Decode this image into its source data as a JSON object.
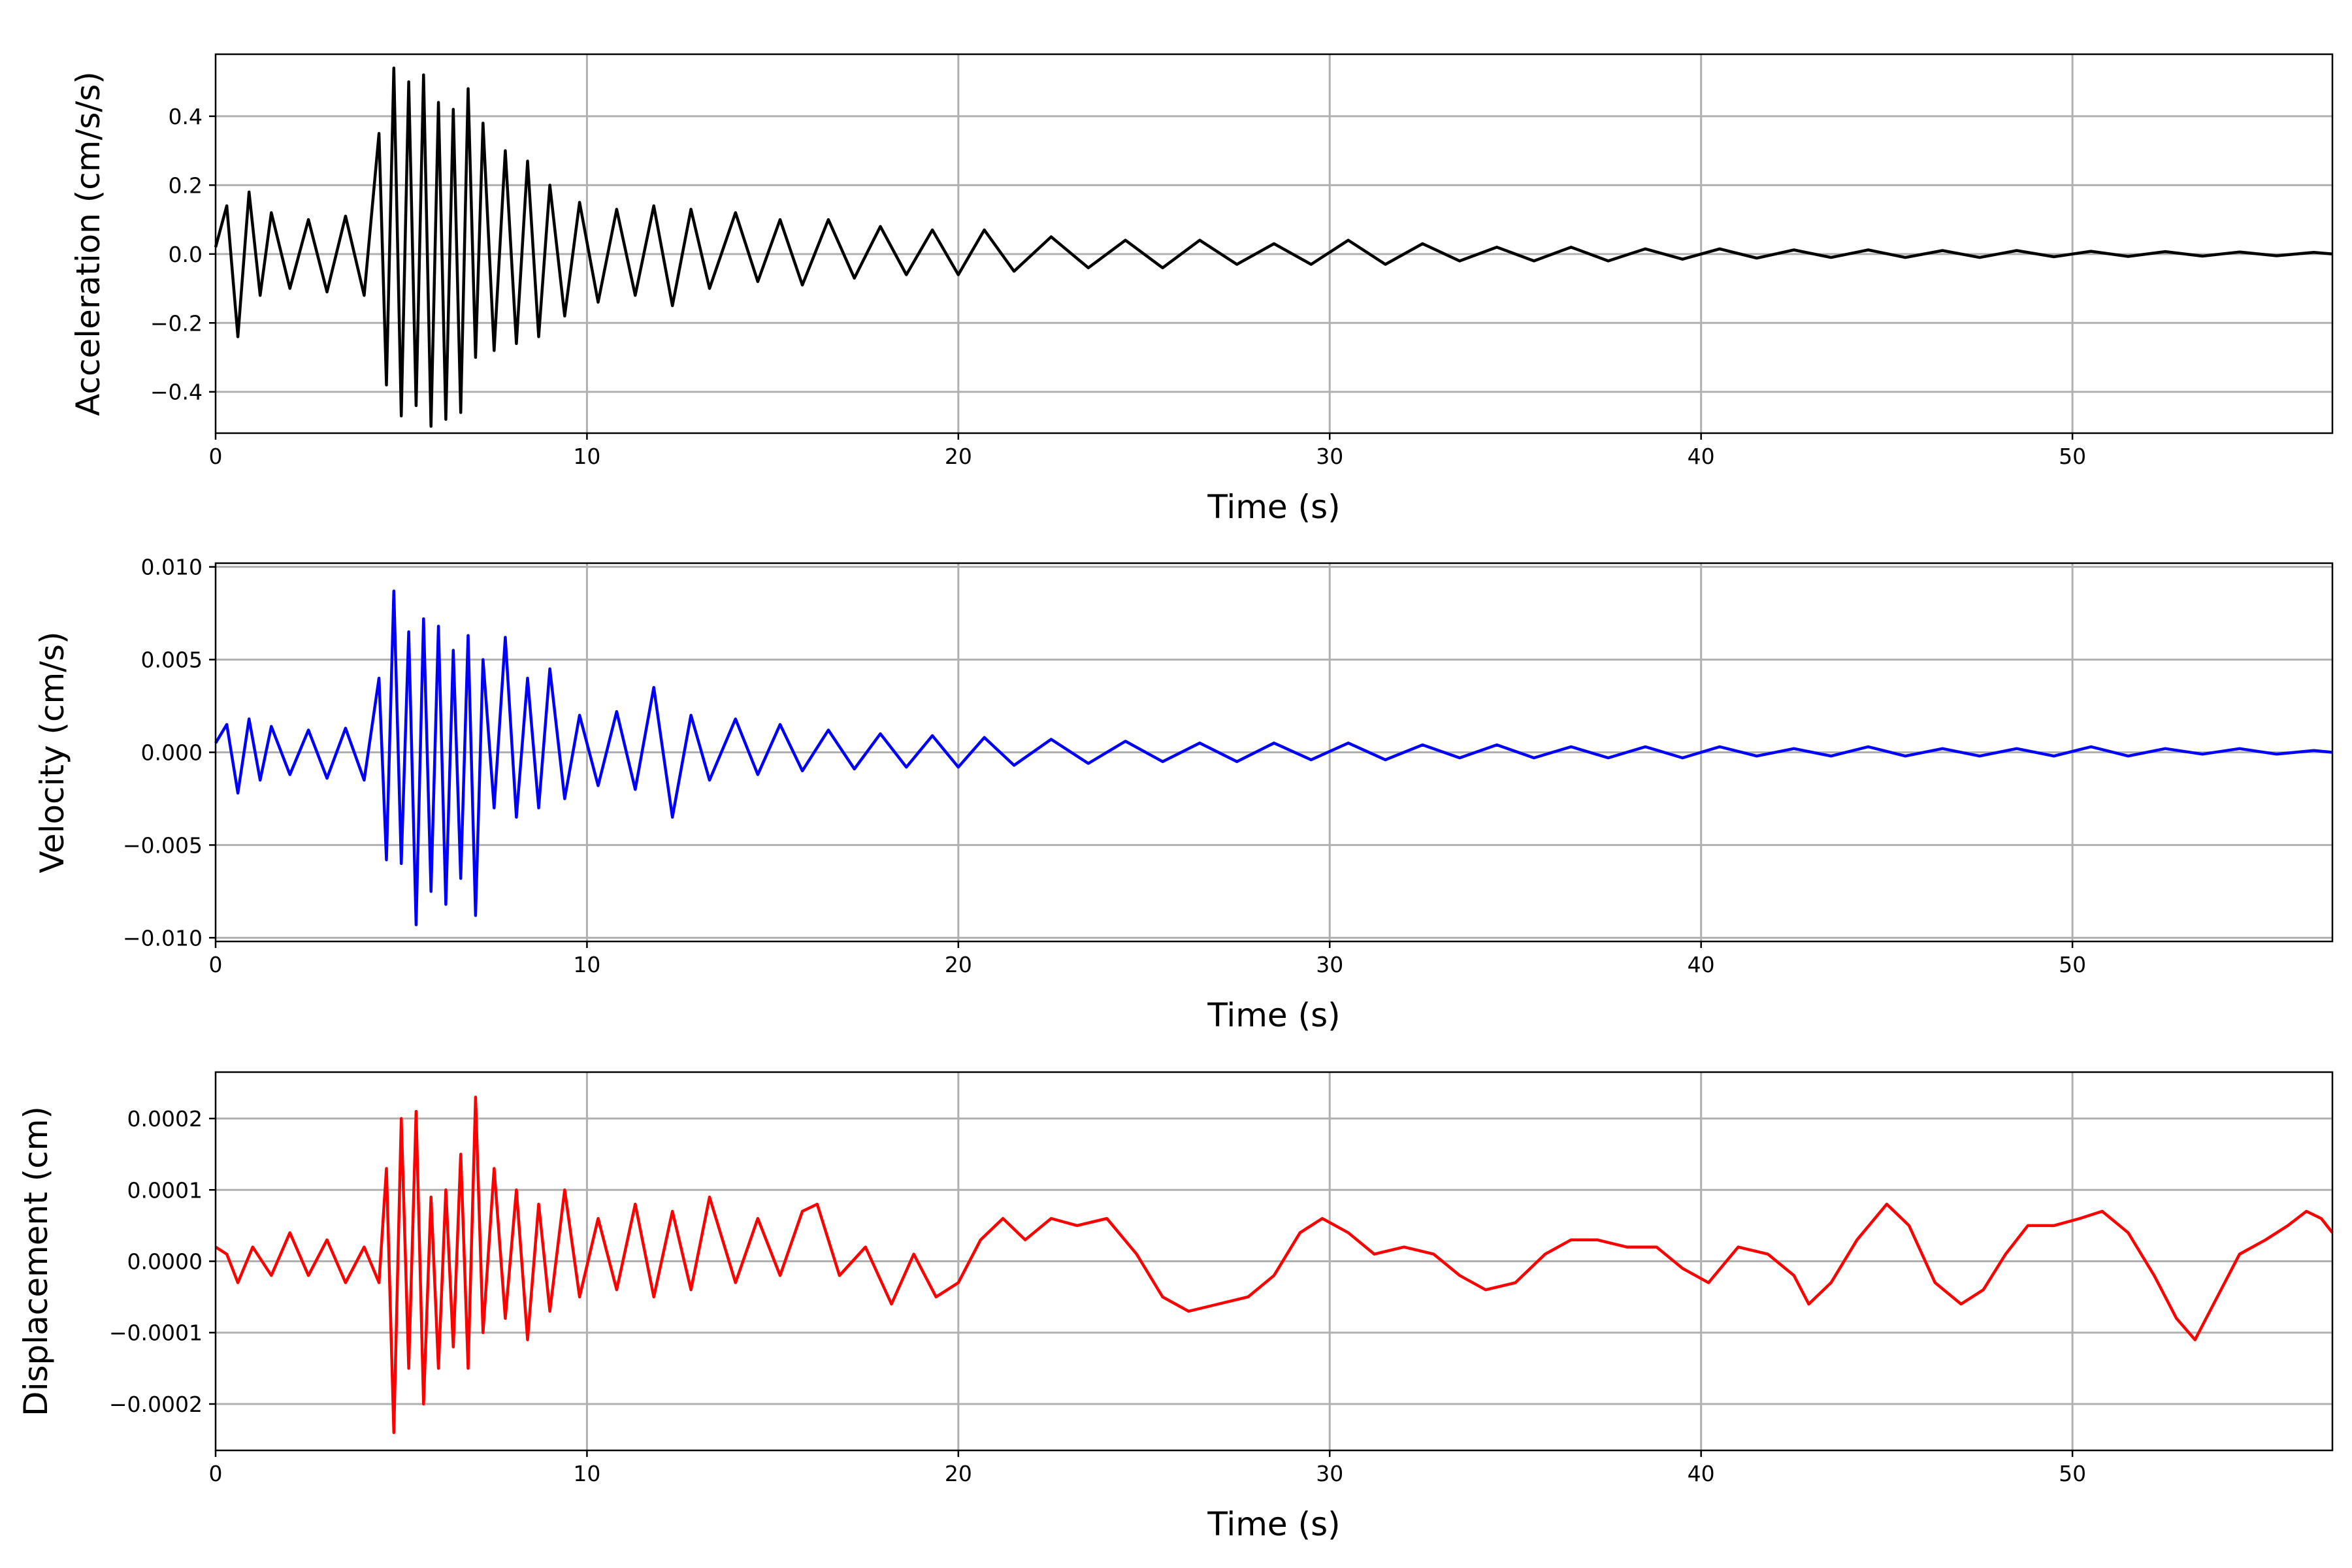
{
  "chart_data": [
    {
      "type": "line",
      "title": "",
      "xlabel": "Time (s)",
      "ylabel": "Acceleration (cm/s/s)",
      "xlim": [
        0,
        57
      ],
      "ylim": [
        -0.52,
        0.58
      ],
      "xticks": [
        0,
        10,
        20,
        30,
        40,
        50
      ],
      "xtick_labels": [
        "0",
        "10",
        "20",
        "30",
        "40",
        "50"
      ],
      "yticks": [
        -0.4,
        -0.2,
        0.0,
        0.2,
        0.4
      ],
      "ytick_labels": [
        "−0.4",
        "−0.2",
        "0.0",
        "0.2",
        "0.4"
      ],
      "grid": true,
      "series": [
        {
          "color": "#000000",
          "x": [
            0,
            0.3,
            0.6,
            0.9,
            1.2,
            1.5,
            2,
            2.5,
            3,
            3.5,
            4,
            4.4,
            4.6,
            4.8,
            5,
            5.2,
            5.4,
            5.6,
            5.8,
            6,
            6.2,
            6.4,
            6.6,
            6.8,
            7,
            7.2,
            7.5,
            7.8,
            8.1,
            8.4,
            8.7,
            9,
            9.4,
            9.8,
            10.3,
            10.8,
            11.3,
            11.8,
            12.3,
            12.8,
            13.3,
            14,
            14.6,
            15.2,
            15.8,
            16.5,
            17.2,
            17.9,
            18.6,
            19.3,
            20,
            20.7,
            21.5,
            22.5,
            23.5,
            24.5,
            25.5,
            26.5,
            27.5,
            28.5,
            29.5,
            30.5,
            31.5,
            32.5,
            33.5,
            34.5,
            35.5,
            36.5,
            37.5,
            38.5,
            39.5,
            40.5,
            41.5,
            42.5,
            43.5,
            44.5,
            45.5,
            46.5,
            47.5,
            48.5,
            49.5,
            50.5,
            51.5,
            52.5,
            53.5,
            54.5,
            55.5,
            56.5,
            57
          ],
          "values": [
            0.02,
            0.14,
            -0.24,
            0.18,
            -0.12,
            0.12,
            -0.1,
            0.1,
            -0.11,
            0.11,
            -0.12,
            0.35,
            -0.38,
            0.54,
            -0.47,
            0.5,
            -0.44,
            0.52,
            -0.5,
            0.44,
            -0.48,
            0.42,
            -0.46,
            0.48,
            -0.3,
            0.38,
            -0.28,
            0.3,
            -0.26,
            0.27,
            -0.24,
            0.2,
            -0.18,
            0.15,
            -0.14,
            0.13,
            -0.12,
            0.14,
            -0.15,
            0.13,
            -0.1,
            0.12,
            -0.08,
            0.1,
            -0.09,
            0.1,
            -0.07,
            0.08,
            -0.06,
            0.07,
            -0.06,
            0.07,
            -0.05,
            0.05,
            -0.04,
            0.04,
            -0.04,
            0.04,
            -0.03,
            0.03,
            -0.03,
            0.04,
            -0.03,
            0.03,
            -0.02,
            0.02,
            -0.02,
            0.02,
            -0.02,
            0.015,
            -0.015,
            0.015,
            -0.012,
            0.012,
            -0.01,
            0.012,
            -0.01,
            0.01,
            -0.01,
            0.01,
            -0.008,
            0.008,
            -0.007,
            0.007,
            -0.006,
            0.006,
            -0.005,
            0.005,
            0.0
          ]
        }
      ]
    },
    {
      "type": "line",
      "title": "",
      "xlabel": "Time (s)",
      "ylabel": "Velocity (cm/s)",
      "xlim": [
        0,
        57
      ],
      "ylim": [
        -0.0102,
        0.0102
      ],
      "xticks": [
        0,
        10,
        20,
        30,
        40,
        50
      ],
      "xtick_labels": [
        "0",
        "10",
        "20",
        "30",
        "40",
        "50"
      ],
      "yticks": [
        -0.01,
        -0.005,
        0.0,
        0.005,
        0.01
      ],
      "ytick_labels": [
        "−0.010",
        "−0.005",
        "0.000",
        "0.005",
        "0.010"
      ],
      "grid": true,
      "series": [
        {
          "color": "#0000ff",
          "x": [
            0,
            0.3,
            0.6,
            0.9,
            1.2,
            1.5,
            2,
            2.5,
            3,
            3.5,
            4,
            4.4,
            4.6,
            4.8,
            5,
            5.2,
            5.4,
            5.6,
            5.8,
            6,
            6.2,
            6.4,
            6.6,
            6.8,
            7,
            7.2,
            7.5,
            7.8,
            8.1,
            8.4,
            8.7,
            9,
            9.4,
            9.8,
            10.3,
            10.8,
            11.3,
            11.8,
            12.3,
            12.8,
            13.3,
            14,
            14.6,
            15.2,
            15.8,
            16.5,
            17.2,
            17.9,
            18.6,
            19.3,
            20,
            20.7,
            21.5,
            22.5,
            23.5,
            24.5,
            25.5,
            26.5,
            27.5,
            28.5,
            29.5,
            30.5,
            31.5,
            32.5,
            33.5,
            34.5,
            35.5,
            36.5,
            37.5,
            38.5,
            39.5,
            40.5,
            41.5,
            42.5,
            43.5,
            44.5,
            45.5,
            46.5,
            47.5,
            48.5,
            49.5,
            50.5,
            51.5,
            52.5,
            53.5,
            54.5,
            55.5,
            56.5,
            57
          ],
          "values": [
            0.0005,
            0.0015,
            -0.0022,
            0.0018,
            -0.0015,
            0.0014,
            -0.0012,
            0.0012,
            -0.0014,
            0.0013,
            -0.0015,
            0.004,
            -0.0058,
            0.0087,
            -0.006,
            0.0065,
            -0.0093,
            0.0072,
            -0.0075,
            0.0068,
            -0.0082,
            0.0055,
            -0.0068,
            0.0063,
            -0.0088,
            0.005,
            -0.003,
            0.0062,
            -0.0035,
            0.004,
            -0.003,
            0.0045,
            -0.0025,
            0.002,
            -0.0018,
            0.0022,
            -0.002,
            0.0035,
            -0.0035,
            0.002,
            -0.0015,
            0.0018,
            -0.0012,
            0.0015,
            -0.001,
            0.0012,
            -0.0009,
            0.001,
            -0.0008,
            0.0009,
            -0.0008,
            0.0008,
            -0.0007,
            0.0007,
            -0.0006,
            0.0006,
            -0.0005,
            0.0005,
            -0.0005,
            0.0005,
            -0.0004,
            0.0005,
            -0.0004,
            0.0004,
            -0.0003,
            0.0004,
            -0.0003,
            0.0003,
            -0.0003,
            0.0003,
            -0.0003,
            0.0003,
            -0.0002,
            0.0002,
            -0.0002,
            0.0003,
            -0.0002,
            0.0002,
            -0.0002,
            0.0002,
            -0.0002,
            0.0003,
            -0.0002,
            0.0002,
            -0.0001,
            0.0002,
            -0.0001,
            0.0001,
            0.0
          ]
        }
      ]
    },
    {
      "type": "line",
      "title": "",
      "xlabel": "Time (s)",
      "ylabel": "Displacement (cm)",
      "xlim": [
        0,
        57
      ],
      "ylim": [
        -0.000265,
        0.000265
      ],
      "xticks": [
        0,
        10,
        20,
        30,
        40,
        50
      ],
      "xtick_labels": [
        "0",
        "10",
        "20",
        "30",
        "40",
        "50"
      ],
      "yticks": [
        -0.0002,
        -0.0001,
        0.0,
        0.0001,
        0.0002
      ],
      "ytick_labels": [
        "−0.0002",
        "−0.0001",
        "0.0000",
        "0.0001",
        "0.0002"
      ],
      "grid": true,
      "series": [
        {
          "color": "#ff0000",
          "x": [
            0,
            0.3,
            0.6,
            1,
            1.5,
            2,
            2.5,
            3,
            3.5,
            4,
            4.4,
            4.6,
            4.8,
            5,
            5.2,
            5.4,
            5.6,
            5.8,
            6,
            6.2,
            6.4,
            6.6,
            6.8,
            7,
            7.2,
            7.5,
            7.8,
            8.1,
            8.4,
            8.7,
            9,
            9.4,
            9.8,
            10.3,
            10.8,
            11.3,
            11.8,
            12.3,
            12.8,
            13.3,
            14,
            14.6,
            15.2,
            15.8,
            16.2,
            16.8,
            17.5,
            18.2,
            18.8,
            19.4,
            20,
            20.6,
            21.2,
            21.8,
            22.5,
            23.2,
            24,
            24.8,
            25.5,
            26.2,
            27,
            27.8,
            28.5,
            29.2,
            29.8,
            30.5,
            31.2,
            32,
            32.8,
            33.5,
            34.2,
            35,
            35.8,
            36.5,
            37.2,
            38,
            38.8,
            39.5,
            40.2,
            41,
            41.8,
            42.5,
            42.9,
            43.5,
            44.2,
            45,
            45.6,
            46.3,
            47,
            47.6,
            48.2,
            48.8,
            49.5,
            50.2,
            50.8,
            51.5,
            52.2,
            52.8,
            53.3,
            53.8,
            54.5,
            55.2,
            55.8,
            56.3,
            56.7,
            57
          ],
          "values": [
            2e-05,
            1e-05,
            -3e-05,
            2e-05,
            -2e-05,
            4e-05,
            -2e-05,
            3e-05,
            -3e-05,
            2e-05,
            -3e-05,
            0.00013,
            -0.00024,
            0.0002,
            -0.00015,
            0.00021,
            -0.0002,
            9e-05,
            -0.00015,
            0.0001,
            -0.00012,
            0.00015,
            -0.00015,
            0.00023,
            -0.0001,
            0.00013,
            -8e-05,
            0.0001,
            -0.00011,
            8e-05,
            -7e-05,
            0.0001,
            -5e-05,
            6e-05,
            -4e-05,
            8e-05,
            -5e-05,
            7e-05,
            -4e-05,
            9e-05,
            -3e-05,
            6e-05,
            -2e-05,
            7e-05,
            8e-05,
            -2e-05,
            2e-05,
            -6e-05,
            1e-05,
            -5e-05,
            -3e-05,
            3e-05,
            6e-05,
            3e-05,
            6e-05,
            5e-05,
            6e-05,
            1e-05,
            -5e-05,
            -7e-05,
            -6e-05,
            -5e-05,
            -2e-05,
            4e-05,
            6e-05,
            4e-05,
            1e-05,
            2e-05,
            1e-05,
            -2e-05,
            -4e-05,
            -3e-05,
            1e-05,
            3e-05,
            3e-05,
            2e-05,
            2e-05,
            -1e-05,
            -3e-05,
            2e-05,
            1e-05,
            -2e-05,
            -6e-05,
            -3e-05,
            3e-05,
            8e-05,
            5e-05,
            -3e-05,
            -6e-05,
            -4e-05,
            1e-05,
            5e-05,
            5e-05,
            6e-05,
            7e-05,
            4e-05,
            -2e-05,
            -8e-05,
            -0.00011,
            -6e-05,
            1e-05,
            3e-05,
            5e-05,
            7e-05,
            6e-05,
            4e-05
          ]
        }
      ]
    }
  ]
}
